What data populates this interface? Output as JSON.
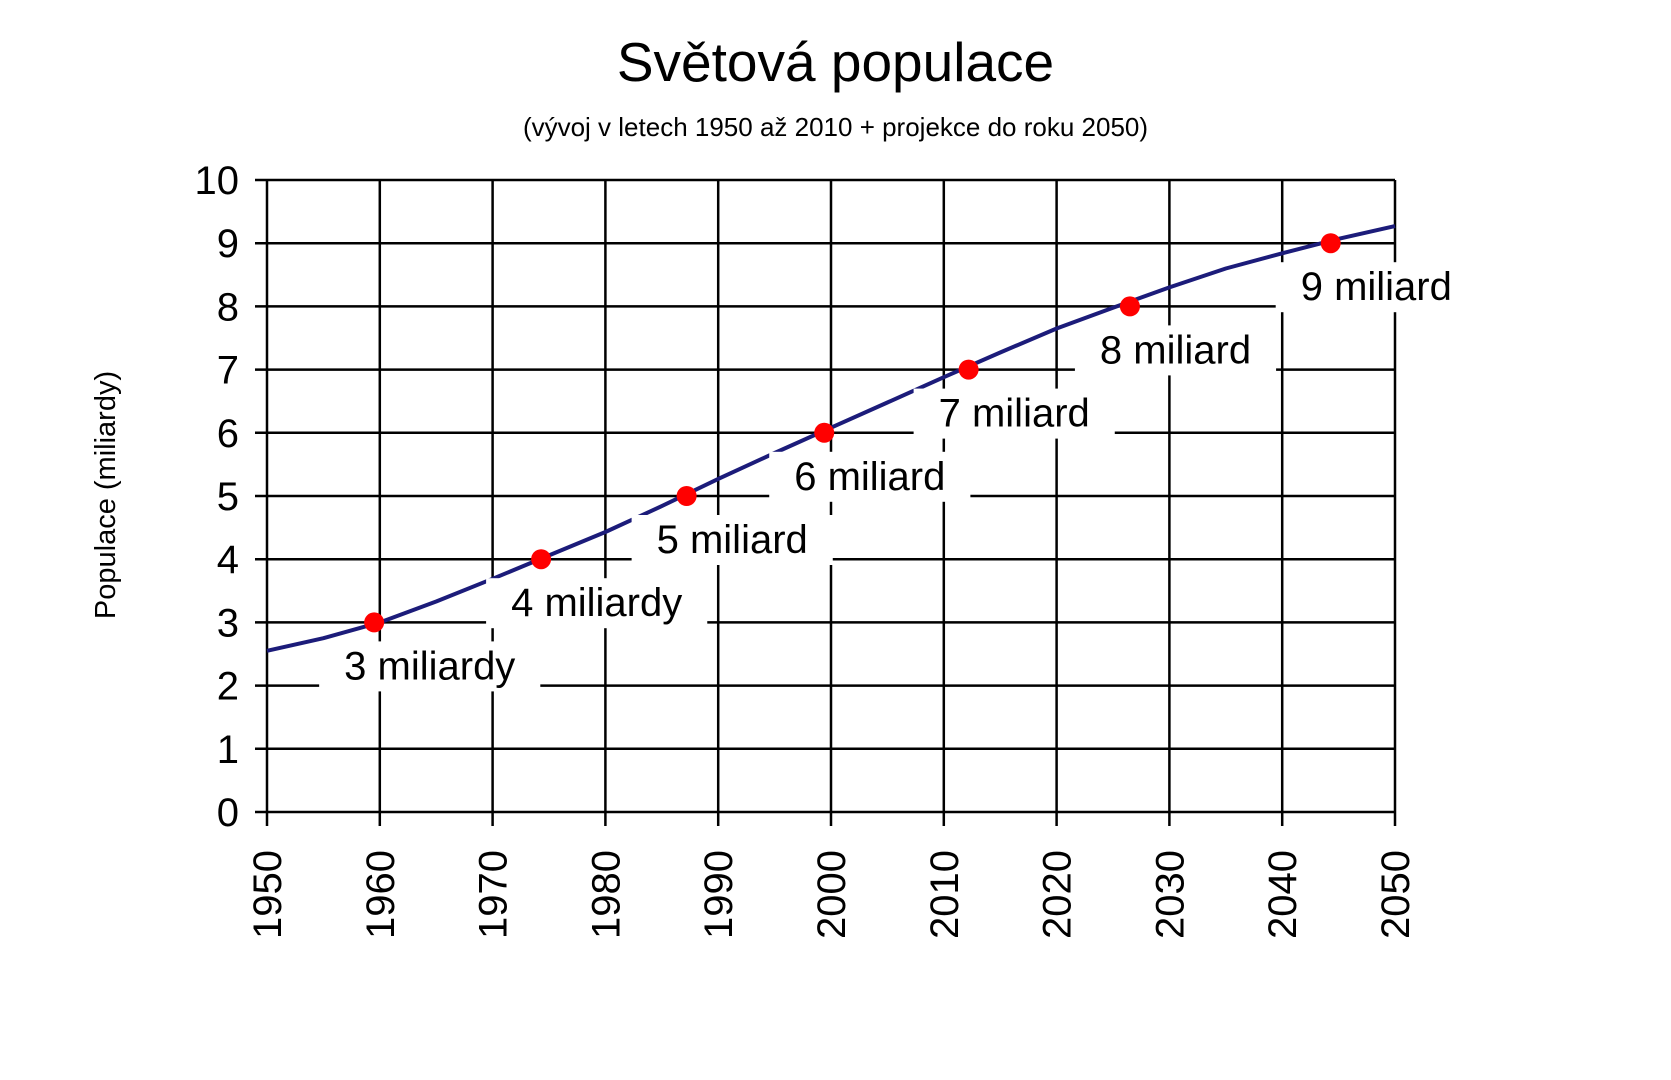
{
  "chart_data": {
    "type": "line",
    "title": "Světová populace",
    "subtitle": "(vývoj v letech 1950 až 2010 + projekce do roku 2050)",
    "xlabel": "",
    "ylabel": "Populace  (miliardy)",
    "xlim": [
      1950,
      2050
    ],
    "ylim": [
      0,
      10
    ],
    "grid": true,
    "x_ticks": [
      "1950",
      "1960",
      "1970",
      "1980",
      "1990",
      "2000",
      "2010",
      "2020",
      "2030",
      "2040",
      "2050"
    ],
    "y_ticks": [
      "0",
      "1",
      "2",
      "3",
      "4",
      "5",
      "6",
      "7",
      "8",
      "9",
      "10"
    ],
    "series": [
      {
        "x": [
          1950,
          1955,
          1960,
          1965,
          1970,
          1975,
          1980,
          1985,
          1990,
          1995,
          2000,
          2005,
          2010,
          2015,
          2020,
          2025,
          2030,
          2035,
          2040,
          2045,
          2050
        ],
        "values": [
          2.55,
          2.75,
          3.0,
          3.33,
          3.69,
          4.06,
          4.43,
          4.84,
          5.27,
          5.68,
          6.08,
          6.48,
          6.88,
          7.27,
          7.65,
          7.98,
          8.3,
          8.6,
          8.84,
          9.07,
          9.27
        ]
      }
    ],
    "line_color": "#1c1c7a",
    "milestones": [
      {
        "x": 1959.5,
        "y": 3,
        "label": "3 miliardy"
      },
      {
        "x": 1974.3,
        "y": 4,
        "label": "4 miliardy"
      },
      {
        "x": 1987.2,
        "y": 5,
        "label": "5 miliard"
      },
      {
        "x": 1999.4,
        "y": 6,
        "label": "6 miliard"
      },
      {
        "x": 2012.2,
        "y": 7,
        "label": "7 miliard"
      },
      {
        "x": 2026.5,
        "y": 8,
        "label": "8 miliard"
      },
      {
        "x": 2044.3,
        "y": 9,
        "label": "9 miliard"
      }
    ],
    "marker_color": "#ff0000"
  }
}
